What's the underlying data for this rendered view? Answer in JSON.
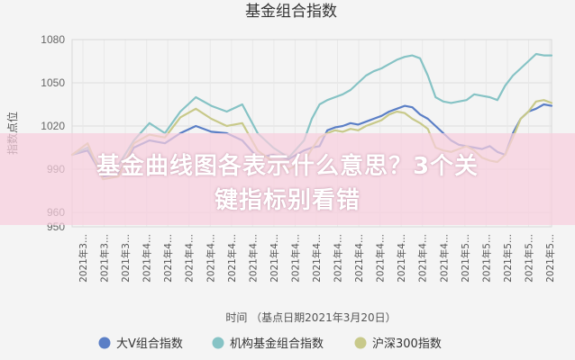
{
  "chart_data": {
    "type": "line",
    "title": "基金组合指数",
    "ylabel": "指数点位",
    "xlabel": "时间 （基点日期2021年3月20日）",
    "ylim": [
      950,
      1080
    ],
    "yticks": [
      950,
      960,
      990,
      1020,
      1050,
      1080
    ],
    "grid": true,
    "legend_position": "bottom",
    "x_tick_labels": [
      "2021年3...",
      "2021年3...",
      "2021年3...",
      "2021年4...",
      "2021年4...",
      "2021年4...",
      "2021年4...",
      "2021年4...",
      "2021年4...",
      "2021年4...",
      "2021年4...",
      "2021年4...",
      "2021年4...",
      "2021年4...",
      "2021年4...",
      "2021年4...",
      "2021年4...",
      "2021年4...",
      "2021年5...",
      "2021年5...",
      "2021年5...",
      "2021年5...",
      "2021年5..."
    ],
    "x": [
      1,
      2,
      3,
      4,
      5,
      6,
      7,
      8,
      9,
      10,
      11,
      12,
      13,
      14,
      15,
      16,
      16.5,
      17,
      17.5,
      18,
      18.5,
      19,
      19.5,
      20,
      20.5,
      21,
      21.5,
      22,
      22.5,
      23,
      23.5,
      24,
      24.5,
      25,
      25.5,
      26,
      26.5,
      27,
      27.5,
      28,
      28.5,
      29,
      29.5,
      30,
      30.5,
      31,
      31.5,
      32
    ],
    "series": [
      {
        "name": "大V组合指数",
        "color": "#5b7fc6",
        "values": [
          1000,
          1003,
          985,
          987,
          1005,
          1010,
          1008,
          1015,
          1020,
          1016,
          1015,
          1010,
          998,
          1000,
          997,
          1003,
          1005,
          1006,
          1017,
          1019,
          1020,
          1022,
          1021,
          1023,
          1025,
          1027,
          1030,
          1032,
          1034,
          1033,
          1028,
          1025,
          1020,
          1015,
          1010,
          1007,
          1006,
          1005,
          1004,
          1006,
          1002,
          1000,
          1015,
          1025,
          1030,
          1032,
          1035,
          1034
        ]
      },
      {
        "name": "机构基金组合指数",
        "color": "#86c3c5",
        "values": [
          1000,
          1005,
          988,
          993,
          1010,
          1022,
          1015,
          1030,
          1040,
          1034,
          1030,
          1035,
          1015,
          1005,
          998,
          1010,
          1025,
          1035,
          1038,
          1040,
          1042,
          1045,
          1050,
          1055,
          1058,
          1060,
          1063,
          1066,
          1068,
          1069,
          1067,
          1055,
          1040,
          1037,
          1036,
          1037,
          1038,
          1042,
          1041,
          1040,
          1038,
          1048,
          1055,
          1060,
          1065,
          1070,
          1069,
          1069
        ]
      },
      {
        "name": "沪深300指数",
        "color": "#c8c98a",
        "values": [
          1000,
          1008,
          983,
          985,
          1008,
          1014,
          1012,
          1026,
          1032,
          1025,
          1020,
          1022,
          1003,
          995,
          990,
          995,
          1004,
          1012,
          1015,
          1017,
          1016,
          1018,
          1017,
          1020,
          1022,
          1024,
          1028,
          1030,
          1029,
          1025,
          1022,
          1018,
          1005,
          1003,
          1002,
          1004,
          1006,
          1003,
          998,
          996,
          995,
          1000,
          1012,
          1025,
          1030,
          1037,
          1038,
          1036
        ]
      }
    ]
  },
  "banner": {
    "line1": "基金曲线图各表示什么意思？3个关",
    "line2": "键指标别看错"
  }
}
